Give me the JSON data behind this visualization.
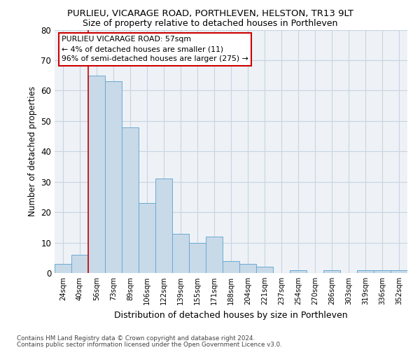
{
  "title1": "PURLIEU, VICARAGE ROAD, PORTHLEVEN, HELSTON, TR13 9LT",
  "title2": "Size of property relative to detached houses in Porthleven",
  "xlabel": "Distribution of detached houses by size in Porthleven",
  "ylabel": "Number of detached properties",
  "bar_labels": [
    "24sqm",
    "40sqm",
    "56sqm",
    "73sqm",
    "89sqm",
    "106sqm",
    "122sqm",
    "139sqm",
    "155sqm",
    "171sqm",
    "188sqm",
    "204sqm",
    "221sqm",
    "237sqm",
    "254sqm",
    "270sqm",
    "286sqm",
    "303sqm",
    "319sqm",
    "336sqm",
    "352sqm"
  ],
  "bar_values": [
    3,
    6,
    65,
    63,
    48,
    23,
    31,
    13,
    10,
    12,
    4,
    3,
    2,
    0,
    1,
    0,
    1,
    0,
    1,
    1,
    1
  ],
  "bar_color": "#c8d9e8",
  "bar_edge_color": "#6aaad4",
  "vline_index": 2,
  "annotation_text": "PURLIEU VICARAGE ROAD: 57sqm\n← 4% of detached houses are smaller (11)\n96% of semi-detached houses are larger (275) →",
  "annotation_box_color": "#ffffff",
  "annotation_box_edge_color": "#cc0000",
  "vline_color": "#cc0000",
  "grid_color": "#c8d4e0",
  "background_color": "#eef2f7",
  "ylim": [
    0,
    80
  ],
  "title1_fontsize": 9.5,
  "title2_fontsize": 9.0,
  "footer1": "Contains HM Land Registry data © Crown copyright and database right 2024.",
  "footer2": "Contains public sector information licensed under the Open Government Licence v3.0."
}
